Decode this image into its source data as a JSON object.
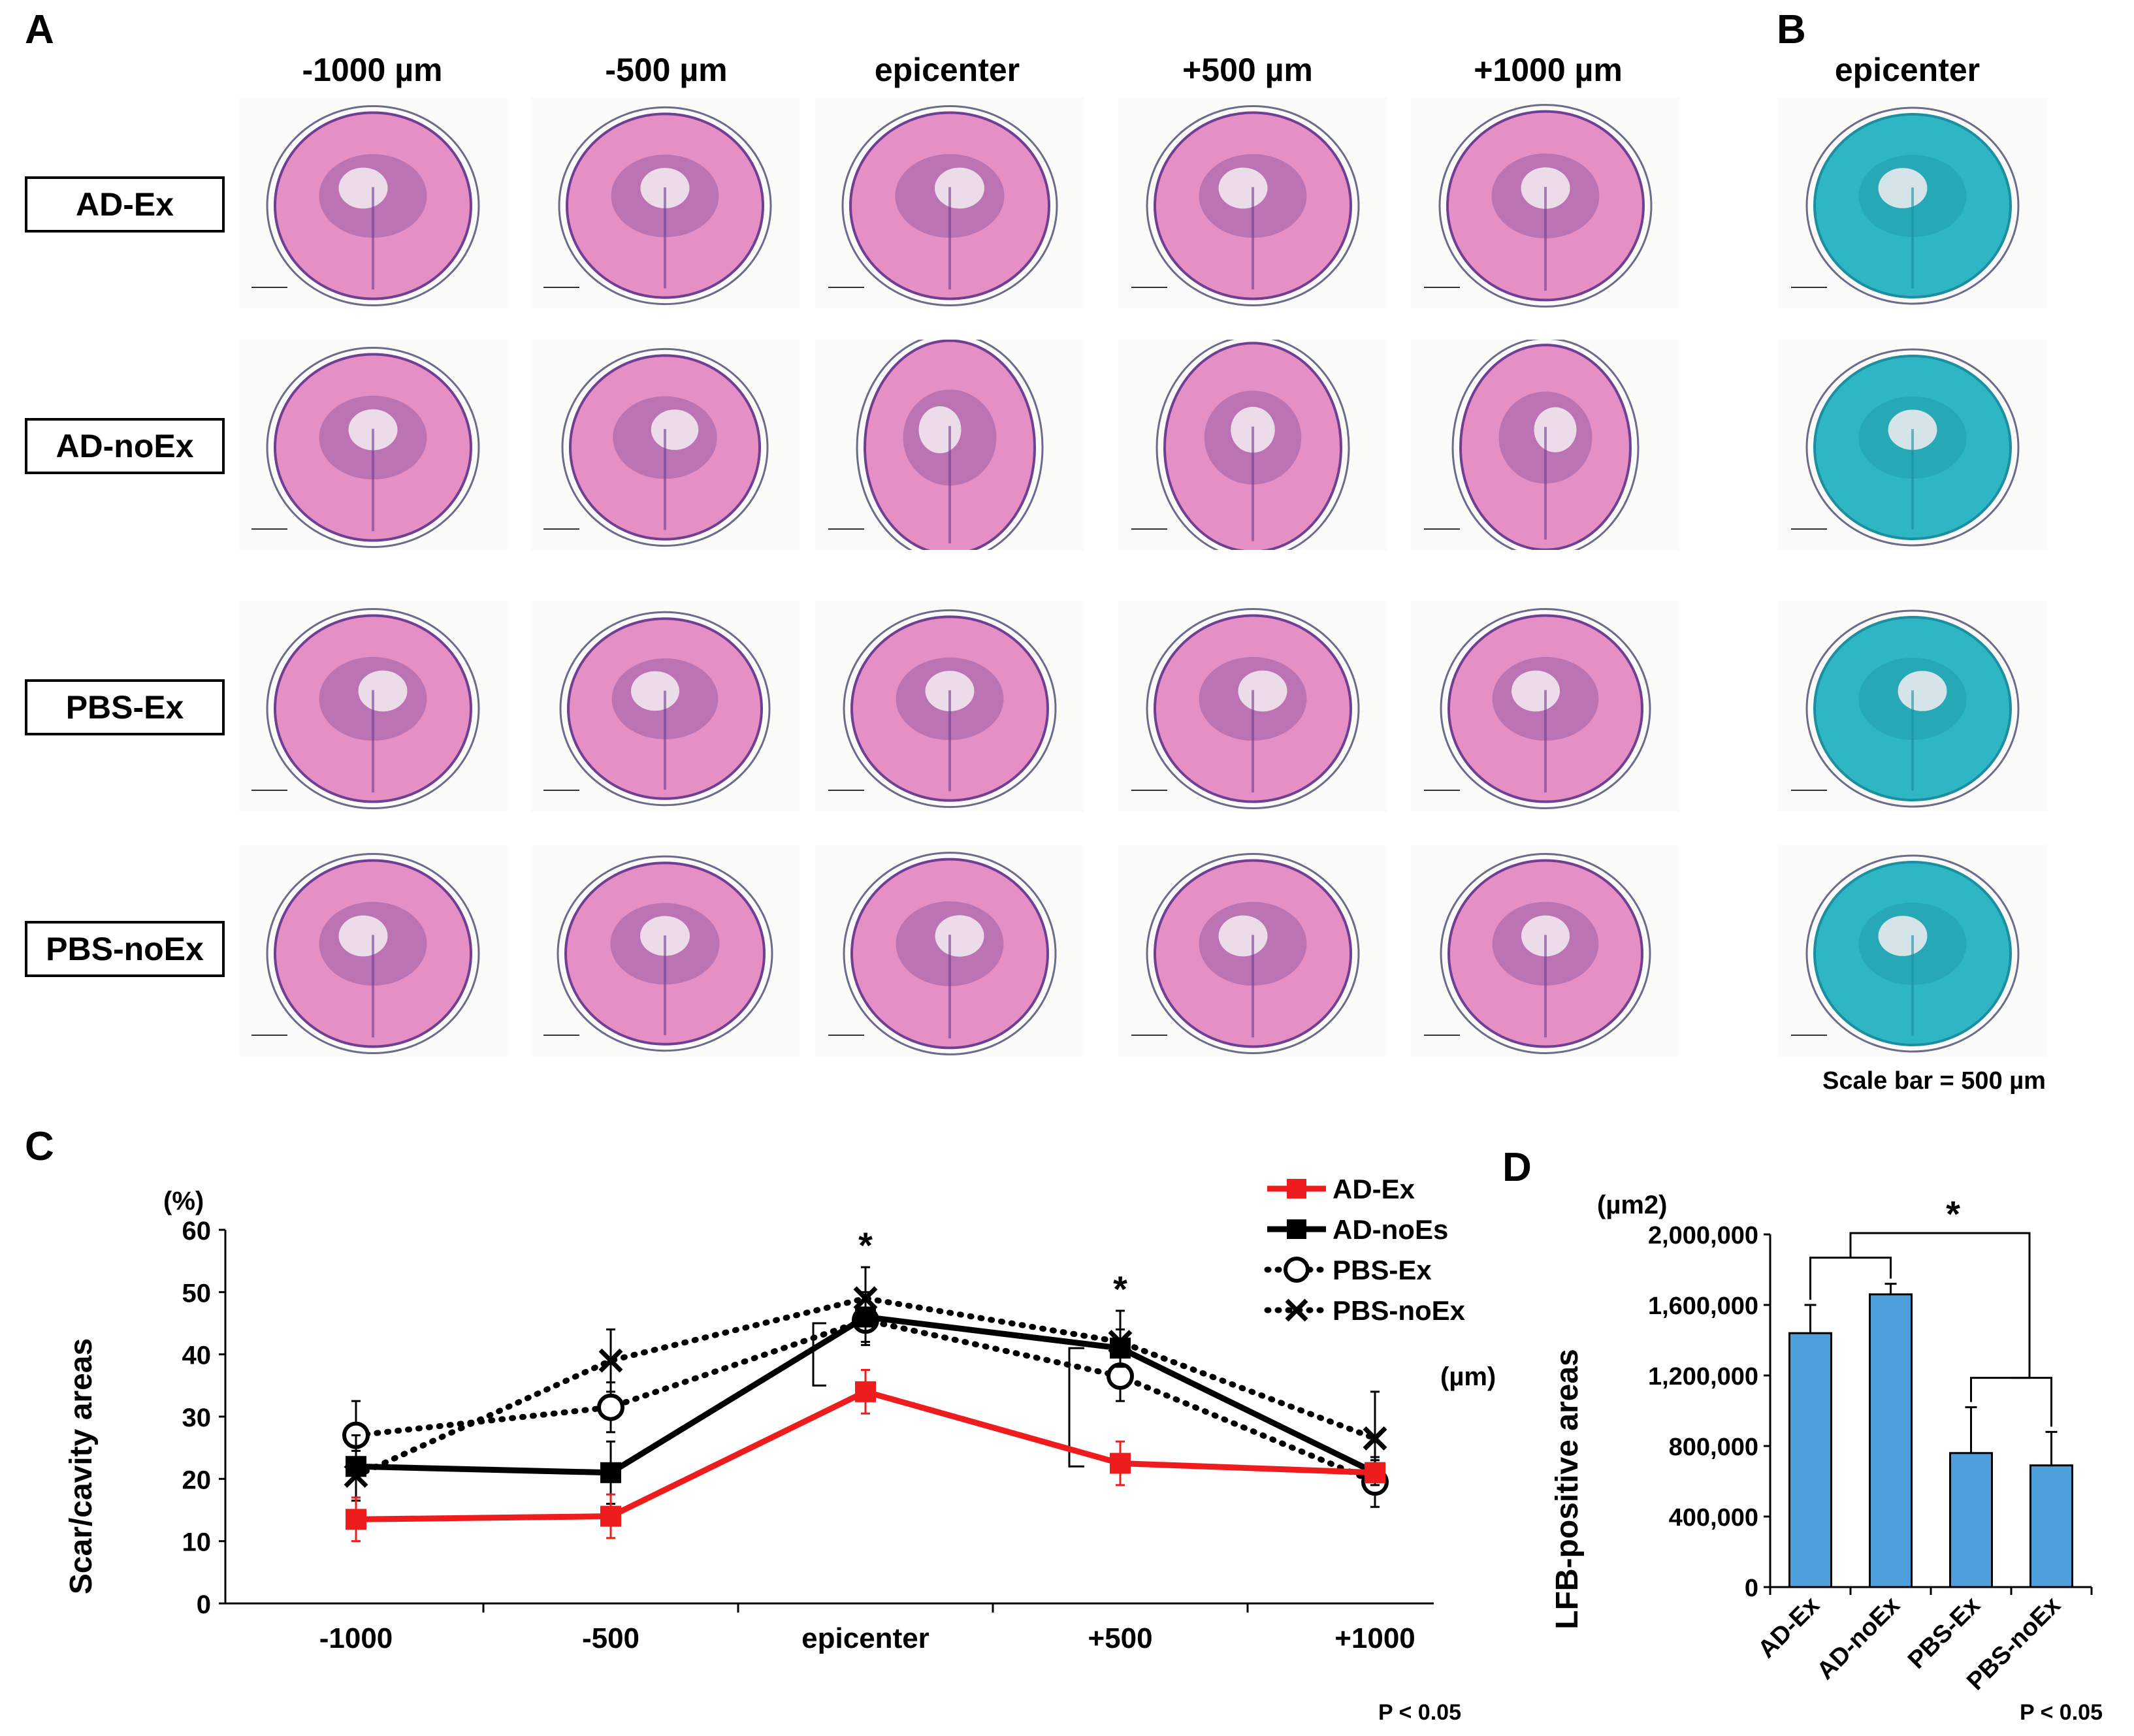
{
  "panels": {
    "a": "A",
    "b": "B",
    "c": "C",
    "d": "D"
  },
  "panel_a": {
    "columns": [
      "-1000 µm",
      "-500 µm",
      "epicenter",
      "+500 µm",
      "+1000 µm"
    ],
    "rows": [
      "AD-Ex",
      "AD-noEx",
      "PBS-Ex",
      "PBS-noEx"
    ],
    "scale_text": "500 µm"
  },
  "panel_b": {
    "column": "epicenter",
    "scale_bar_note": "Scale bar = 500 µm"
  },
  "colors": {
    "he_tissue": "#e58fc4",
    "he_dark": "#6f3f94",
    "lfb_tissue": "#2eb6c4",
    "red_series": "#ee1c1c",
    "bar_fill": "#4f9fdc"
  },
  "chart_data": [
    {
      "type": "line",
      "panel": "C",
      "ylabel": "Scar/cavity areas",
      "yunit": "(%)",
      "xunit": "(µm)",
      "categories": [
        "-1000",
        "-500",
        "epicenter",
        "+500",
        "+1000"
      ],
      "ylim": [
        0,
        60
      ],
      "yticks": [
        "0",
        "10",
        "20",
        "30",
        "40",
        "50",
        "60"
      ],
      "series": [
        {
          "name": "AD-Ex",
          "values": [
            13.5,
            14,
            34,
            22.5,
            21
          ],
          "errors": [
            3.5,
            3.5,
            3.5,
            3.5,
            0
          ],
          "marker": "square",
          "color": "#ee1c1c",
          "line": "solid"
        },
        {
          "name": "AD-noEs",
          "values": [
            22,
            21,
            46,
            41,
            21
          ],
          "errors": [
            5,
            5,
            4,
            3,
            2
          ],
          "marker": "square",
          "color": "#000000",
          "line": "solid"
        },
        {
          "name": "PBS-Ex",
          "values": [
            27,
            31.5,
            45.5,
            36.5,
            19.5
          ],
          "errors": [
            5.5,
            4,
            4,
            4,
            4
          ],
          "marker": "circle",
          "color": "#000000",
          "line": "dotted"
        },
        {
          "name": "PBS-noEx",
          "values": [
            20.5,
            39,
            49,
            42,
            26.5
          ],
          "errors": [
            4,
            5,
            5,
            5,
            7.5
          ],
          "marker": "x",
          "color": "#000000",
          "line": "dotted"
        }
      ],
      "significance": [
        {
          "category": "epicenter",
          "label": "*"
        },
        {
          "category": "+500",
          "label": "*"
        }
      ],
      "footnote": "P < 0.05"
    },
    {
      "type": "bar",
      "panel": "D",
      "ylabel": "LFB-positive areas",
      "yunit": "(µm2)",
      "categories": [
        "AD-Ex",
        "AD-noEx",
        "PBS-Ex",
        "PBS-noEx"
      ],
      "values": [
        1440000,
        1660000,
        760000,
        690000
      ],
      "errors": [
        160000,
        60000,
        260000,
        190000
      ],
      "ylim": [
        0,
        2000000
      ],
      "yticks": [
        "0",
        "400,000",
        "800,000",
        "1,200,000",
        "1,600,000",
        "2,000,000"
      ],
      "significance": {
        "label": "*",
        "groups": [
          [
            "AD-Ex",
            "AD-noEx"
          ],
          [
            "PBS-Ex",
            "PBS-noEx"
          ]
        ]
      },
      "footnote": "P < 0.05"
    }
  ]
}
